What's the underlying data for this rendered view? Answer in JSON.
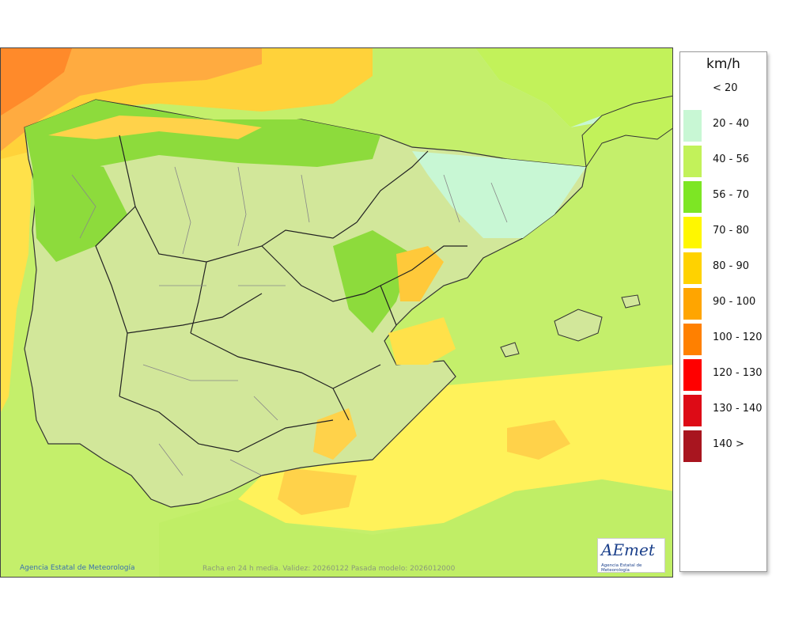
{
  "map": {
    "credit": "Agencia Estatal de Meteorología",
    "validity": "Racha en 24 h media. Validez: 20260122 Pasada modelo: 2026012000",
    "logo_text": "AEmet",
    "logo_subtext": "Agencia Estatal de Meteorología"
  },
  "legend": {
    "unit": "km/h",
    "items": [
      {
        "label": "< 20",
        "color": "#ffffff"
      },
      {
        "label": "20 - 40",
        "color": "#c8f7d4"
      },
      {
        "label": "40 - 56",
        "color": "#c2f25a"
      },
      {
        "label": "56 - 70",
        "color": "#7de624"
      },
      {
        "label": "70 - 80",
        "color": "#fff700"
      },
      {
        "label": "80 - 90",
        "color": "#ffd200"
      },
      {
        "label": "90 - 100",
        "color": "#ffa500"
      },
      {
        "label": "100 - 120",
        "color": "#ff8000"
      },
      {
        "label": "120 - 130",
        "color": "#ff0000"
      },
      {
        "label": "130 - 140",
        "color": "#dd0b16"
      },
      {
        "label": "140 >",
        "color": "#a8151f"
      }
    ]
  }
}
